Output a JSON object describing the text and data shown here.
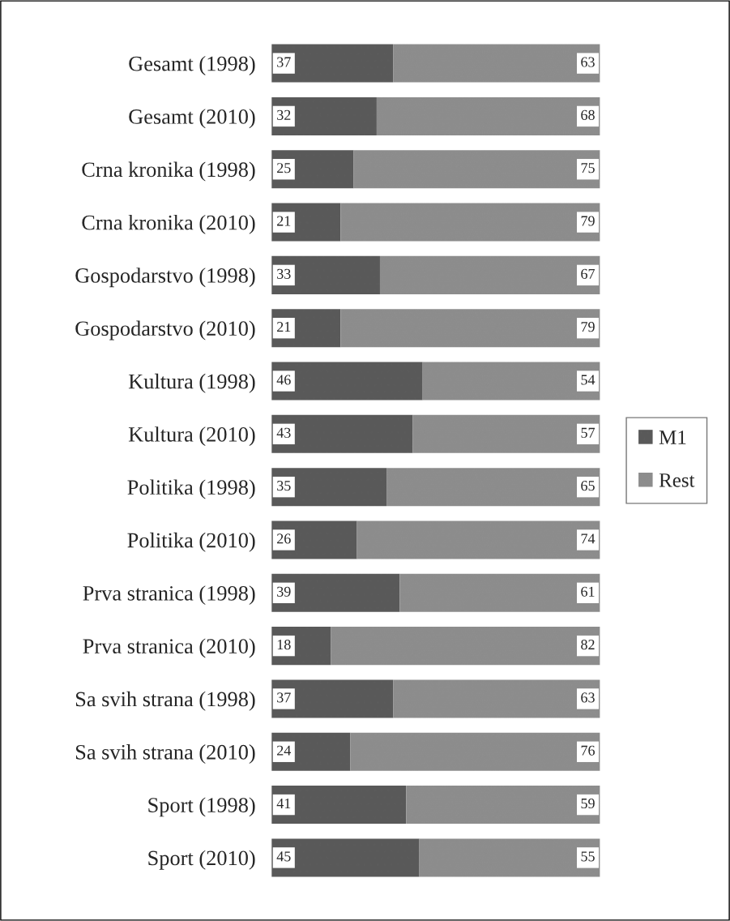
{
  "chart_data": {
    "type": "bar",
    "orientation": "horizontal",
    "stacked": true,
    "categories": [
      "Gesamt (1998)",
      "Gesamt (2010)",
      "Crna kronika (1998)",
      "Crna kronika (2010)",
      "Gospodarstvo (1998)",
      "Gospodarstvo (2010)",
      "Kultura (1998)",
      "Kultura (2010)",
      "Politika (1998)",
      "Politika (2010)",
      "Prva stranica (1998)",
      "Prva stranica (2010)",
      "Sa svih strana (1998)",
      "Sa svih strana (2010)",
      "Sport (1998)",
      "Sport (2010)"
    ],
    "series": [
      {
        "name": "M1",
        "color": "#595959",
        "values": [
          37,
          32,
          25,
          21,
          33,
          21,
          46,
          43,
          35,
          26,
          39,
          18,
          37,
          24,
          41,
          45
        ]
      },
      {
        "name": "Rest",
        "color": "#8c8c8c",
        "values": [
          63,
          68,
          75,
          79,
          67,
          79,
          54,
          57,
          65,
          74,
          61,
          82,
          63,
          76,
          59,
          55
        ]
      }
    ],
    "xlim": [
      0,
      100
    ],
    "tick_labels": "y",
    "data_labels": true,
    "legend": "right",
    "grid": false
  }
}
